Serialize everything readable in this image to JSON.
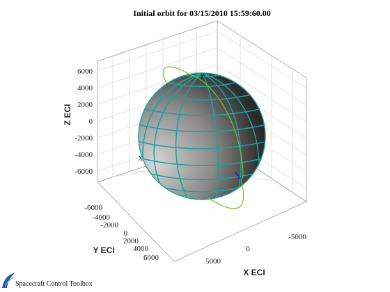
{
  "chart_data": {
    "type": "3d-orbit",
    "title": "Initial orbit for 03/15/2010 15:59:60.00",
    "xlabel": "X ECI",
    "ylabel": "Y ECI",
    "zlabel": "Z ECI",
    "x_ticks": [
      "5000",
      "0",
      "-5000"
    ],
    "y_ticks": [
      "-6000",
      "-4000",
      "-2000",
      "0",
      "2000",
      "4000",
      "6000"
    ],
    "z_ticks": [
      "6000",
      "4000",
      "2000",
      "0",
      "-2000",
      "-4000",
      "-6000"
    ],
    "grid": true,
    "body_markers": [
      "X",
      "Z"
    ],
    "series": [
      {
        "kind": "sphere",
        "color": "#1ea0a0"
      },
      {
        "kind": "orbit",
        "color": "#7dbf1f"
      },
      {
        "kind": "velocity-vector",
        "color": "#1a1aff"
      }
    ]
  },
  "footer": {
    "logo_text": "Spacecraft Control Toolbox"
  }
}
